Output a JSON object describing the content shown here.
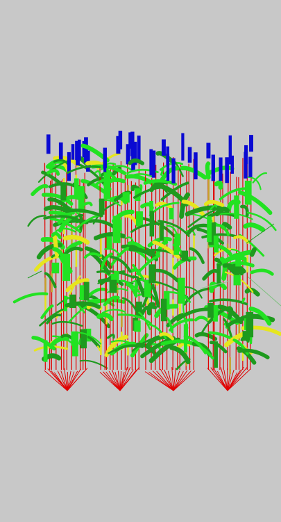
{
  "scene": {
    "description_visible_text": "",
    "background_color": "#c8c8c8",
    "plot_count": 4,
    "colors": {
      "stem": "#e00000",
      "root": "#e00000",
      "leaf_dark": "#1e9a1e",
      "leaf_bright": "#22e222",
      "leaf_yellow": "#e6e61e",
      "ear": "#0a0ad2",
      "senescent": "#c8a028"
    }
  }
}
